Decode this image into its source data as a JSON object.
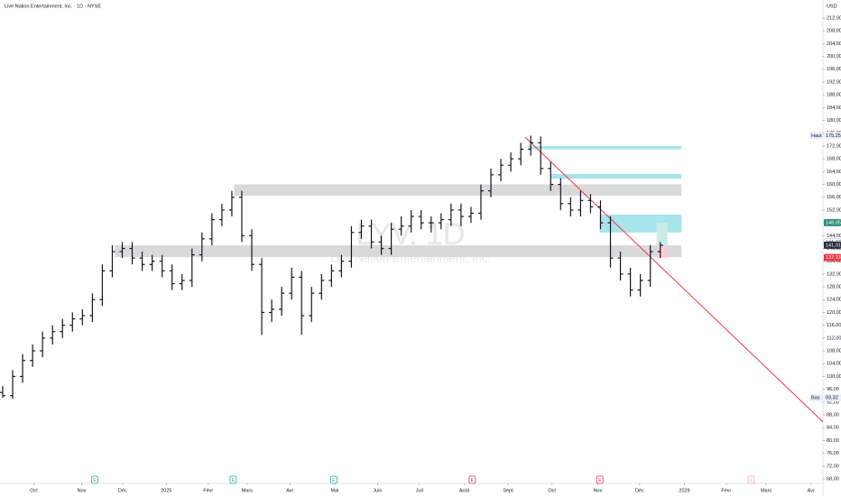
{
  "chart_data": {
    "type": "candlestick",
    "title": "Live Nation Entertainment, Inc. · 1D · NYSE",
    "currency": "USD",
    "watermark": "LYV, 1D",
    "watermark_sub": "Live Nation Entertainment, Inc.",
    "color": "#131722",
    "xlim": [
      0,
      82.6
    ],
    "xticks": [
      {
        "value": 3.4,
        "label": "Oct"
      },
      {
        "value": 8.2,
        "label": "Nov"
      },
      {
        "value": 12.3,
        "label": "Déc"
      },
      {
        "value": 16.7,
        "label": "2025"
      },
      {
        "value": 20.9,
        "label": "Févr"
      },
      {
        "value": 24.8,
        "label": "Mars"
      },
      {
        "value": 29.1,
        "label": "Avr"
      },
      {
        "value": 33.6,
        "label": "Mai"
      },
      {
        "value": 37.9,
        "label": "Juin"
      },
      {
        "value": 42.1,
        "label": "Juil"
      },
      {
        "value": 46.6,
        "label": "Août"
      },
      {
        "value": 51.0,
        "label": "Sept"
      },
      {
        "value": 55.4,
        "label": "Oct"
      },
      {
        "value": 60.0,
        "label": "Nov"
      },
      {
        "value": 64.2,
        "label": "Déc"
      },
      {
        "value": 68.7,
        "label": "2026"
      },
      {
        "value": 72.9,
        "label": "Févr"
      },
      {
        "value": 76.9,
        "label": "Mars"
      },
      {
        "value": 81.4,
        "label": "Avr"
      }
    ],
    "ylim": [
      68,
      212
    ],
    "yticks": [
      {
        "value": 212,
        "label": "212,00"
      },
      {
        "value": 208,
        "label": "208,00"
      },
      {
        "value": 204,
        "label": "204,00"
      },
      {
        "value": 200,
        "label": "200,00"
      },
      {
        "value": 196,
        "label": "196,00"
      },
      {
        "value": 192,
        "label": "192,00"
      },
      {
        "value": 188,
        "label": "188,00"
      },
      {
        "value": 184,
        "label": "184,00"
      },
      {
        "value": 180,
        "label": "180,00"
      },
      {
        "value": 176,
        "label": "176,00"
      },
      {
        "value": 172,
        "label": "172,00"
      },
      {
        "value": 168,
        "label": "168,00"
      },
      {
        "value": 164,
        "label": "164,00"
      },
      {
        "value": 160,
        "label": "160,00"
      },
      {
        "value": 156,
        "label": "156,00"
      },
      {
        "value": 152,
        "label": "152,00"
      },
      {
        "value": 148,
        "label": "148,00"
      },
      {
        "value": 144,
        "label": "144,00"
      },
      {
        "value": 140,
        "label": "140,00"
      },
      {
        "value": 136,
        "label": "136,00"
      },
      {
        "value": 132,
        "label": "132,00"
      },
      {
        "value": 128,
        "label": "128,00"
      },
      {
        "value": 124,
        "label": "124,00"
      },
      {
        "value": 120,
        "label": "120,00"
      },
      {
        "value": 116,
        "label": "116,00"
      },
      {
        "value": 112,
        "label": "112,00"
      },
      {
        "value": 108,
        "label": "108,00"
      },
      {
        "value": 104,
        "label": "104,00"
      },
      {
        "value": 100,
        "label": "100,00"
      },
      {
        "value": 96,
        "label": "96,00"
      },
      {
        "value": 92,
        "label": "92,00"
      },
      {
        "value": 88,
        "label": "88,00"
      },
      {
        "value": 84,
        "label": "84,00"
      },
      {
        "value": 80,
        "label": "80,00"
      },
      {
        "value": 76,
        "label": "76,00"
      },
      {
        "value": 72,
        "label": "72,00"
      },
      {
        "value": 68,
        "label": "68,00"
      }
    ],
    "x": [
      0,
      1,
      2,
      3,
      4,
      5,
      6,
      7,
      8,
      9,
      10,
      11,
      12,
      13,
      14,
      15,
      16,
      17,
      18,
      19,
      20,
      21,
      22,
      23,
      24,
      25,
      26,
      27,
      28,
      29,
      30,
      31,
      32,
      33,
      34,
      35,
      36,
      37,
      38,
      39,
      40,
      41,
      42,
      43,
      44,
      45,
      46,
      47,
      48,
      49,
      50,
      51,
      52,
      53,
      54,
      55,
      56,
      57,
      58,
      59,
      60,
      61,
      62,
      63,
      64,
      65,
      66
    ],
    "open": [
      95,
      94,
      100,
      105,
      108,
      112,
      114,
      116,
      118,
      119,
      124,
      133,
      139,
      140,
      137,
      135,
      136,
      133,
      129,
      130,
      138,
      143,
      149,
      152,
      156,
      144,
      135,
      120,
      121,
      126,
      131,
      119,
      126,
      130,
      133,
      136,
      145,
      147,
      142,
      140,
      146,
      147,
      150,
      148,
      148,
      149,
      152,
      150,
      151,
      158,
      163,
      166,
      168,
      171,
      173,
      165,
      160,
      154,
      152,
      155,
      153,
      148,
      137,
      132,
      127,
      130,
      139
    ],
    "high": [
      97,
      102,
      107,
      110,
      114,
      116,
      118,
      120,
      121,
      126,
      135,
      141,
      142,
      142,
      139,
      138,
      138,
      135,
      132,
      140,
      145,
      151,
      154,
      158,
      158,
      146,
      137,
      124,
      128,
      134,
      133,
      128,
      132,
      135,
      138,
      147,
      149,
      149,
      144,
      148,
      150,
      152,
      152,
      150,
      151,
      154,
      154,
      153,
      160,
      165,
      168,
      170,
      173,
      175.25,
      175,
      167,
      162,
      156,
      158,
      157,
      155,
      150,
      139,
      134,
      132,
      141,
      142
    ],
    "low": [
      93.32,
      93,
      98,
      103,
      106,
      110,
      112,
      114,
      116,
      117,
      122,
      131,
      137,
      135,
      133,
      133,
      131,
      127,
      127,
      128,
      136,
      141,
      147,
      150,
      142,
      133,
      113,
      117,
      119,
      124,
      113,
      117,
      124,
      128,
      131,
      134,
      143,
      140,
      138,
      138,
      144,
      145,
      146,
      145,
      146,
      147,
      147,
      148,
      149,
      156,
      161,
      164,
      166,
      169,
      163,
      158,
      152,
      150,
      150,
      151,
      146,
      134,
      130,
      125,
      125,
      128,
      137
    ],
    "close": [
      94,
      100,
      105,
      108,
      112,
      114,
      116,
      118,
      119,
      124,
      133,
      139,
      140,
      137,
      135,
      136,
      133,
      129,
      130,
      138,
      143,
      149,
      152,
      156,
      144,
      135,
      120,
      121,
      126,
      131,
      119,
      126,
      130,
      133,
      136,
      145,
      147,
      142,
      140,
      146,
      147,
      150,
      148,
      148,
      149,
      152,
      150,
      151,
      158,
      163,
      166,
      168,
      171,
      173,
      165,
      160,
      154,
      152,
      155,
      153,
      148,
      137,
      132,
      127,
      130,
      139,
      141.01
    ],
    "drawings": [
      {
        "kind": "zone",
        "x": [
          23.5,
          68.4
        ],
        "y": [
          156.5,
          160
        ],
        "color": "#d9d9d9"
      },
      {
        "kind": "zone",
        "x": [
          11.5,
          68.4
        ],
        "y": [
          137.3,
          141
        ],
        "color": "#d9d9d9"
      },
      {
        "kind": "zone",
        "x": [
          53,
          68.4
        ],
        "y": [
          171,
          172
        ],
        "color": "#a8e4ec"
      },
      {
        "kind": "zone",
        "x": [
          55.3,
          68.4
        ],
        "y": [
          161.8,
          163.3
        ],
        "color": "#a8e4ec"
      },
      {
        "kind": "zone",
        "x": [
          60.2,
          68.4
        ],
        "y": [
          145,
          150.6
        ],
        "color": "#a8e4ec"
      },
      {
        "kind": "zone",
        "x": [
          65.9,
          67
        ],
        "y": [
          141,
          148
        ],
        "color": "#c9ece8"
      },
      {
        "kind": "zone",
        "x": [
          65.9,
          67
        ],
        "y": [
          137.1,
          141
        ],
        "color": "#f8cdd2"
      },
      {
        "kind": "line",
        "x": [
          52.7,
          82.6
        ],
        "y": [
          174.8,
          85.8
        ],
        "color": "#f23645"
      }
    ],
    "events": [
      {
        "x": 9.5,
        "label": "E",
        "color": "#26a69a"
      },
      {
        "x": 23.4,
        "label": "E",
        "color": "#26a69a"
      },
      {
        "x": 33.5,
        "label": "E",
        "color": "#26a69a"
      },
      {
        "x": 47.4,
        "label": "E",
        "color": "#f23645"
      },
      {
        "x": 60.2,
        "label": "E",
        "color": "#f23645"
      },
      {
        "x": 75.4,
        "label": "E",
        "color": "#f7a9b3"
      }
    ],
    "tags": [
      {
        "name": "Haut",
        "value": 175.25,
        "value_label": "175,25",
        "color": "#e8eefb",
        "text_color": "#131722"
      },
      {
        "value": 148.05,
        "value_label": "148,05",
        "color": "#2e8b7a",
        "text_color": "#ffffff"
      },
      {
        "value": 141.87,
        "value_label": "141,87",
        "color": "#ffffff",
        "text_color": "#131722"
      },
      {
        "value": 141.01,
        "value_label": "141,01",
        "color": "#2a2e39",
        "text_color": "#ffffff"
      },
      {
        "value": 137.13,
        "value_label": "137,13",
        "color": "#f23645",
        "text_color": "#ffffff"
      },
      {
        "name": "Bas",
        "value": 93.32,
        "value_label": "93,32",
        "color": "#e8eefb",
        "text_color": "#131722"
      }
    ]
  }
}
